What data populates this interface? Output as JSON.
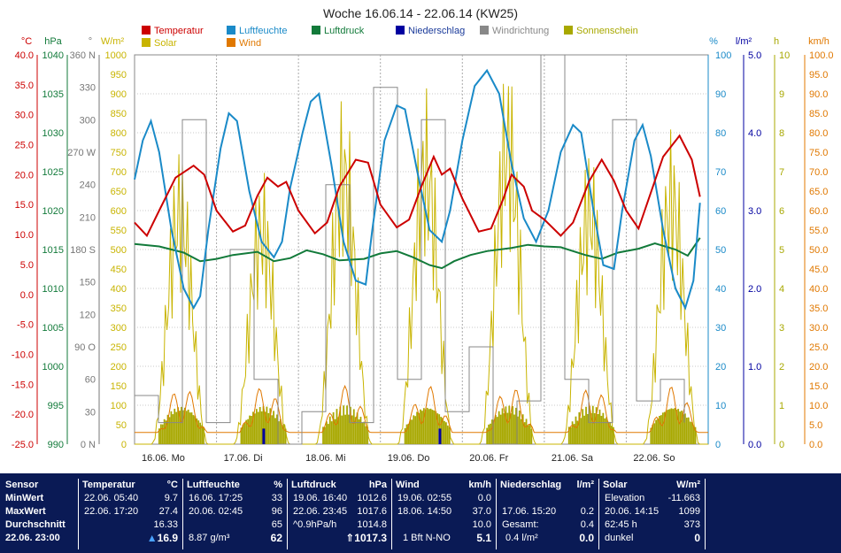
{
  "chart_data": {
    "type": "line",
    "title": "Woche 16.06.14 - 22.06.14 (KW25)",
    "legend": [
      {
        "name": "Temperatur",
        "color": "#cc0000"
      },
      {
        "name": "Solar",
        "color": "#c8b400"
      },
      {
        "name": "Luftfeuchte",
        "color": "#1a8ac8"
      },
      {
        "name": "Wind",
        "color": "#e07800"
      },
      {
        "name": "Luftdruck",
        "color": "#127a3a"
      },
      {
        "name": "Niederschlag",
        "color": "#0000a0"
      },
      {
        "name": "Windrichtung",
        "color": "#888888"
      },
      {
        "name": "Sonnenschein",
        "color": "#a8a800"
      }
    ],
    "axes": {
      "temp": {
        "unit": "°C",
        "color": "#cc0000",
        "ticks": [
          "40.0",
          "35.0",
          "30.0",
          "25.0",
          "20.0",
          "15.0",
          "10.0",
          "5.0",
          "0.0",
          "-5.0",
          "-10.0",
          "-15.0",
          "-20.0",
          "-25.0"
        ]
      },
      "pressure": {
        "unit": "hPa",
        "color": "#127a3a",
        "ticks": [
          "1040",
          "1035",
          "1030",
          "1025",
          "1020",
          "1015",
          "1010",
          "1005",
          "1000",
          "995",
          "990"
        ]
      },
      "direction": {
        "unit": "°",
        "color": "#777777",
        "ticks": [
          "360 N",
          "330",
          "300",
          "270 W",
          "240",
          "210",
          "180 S",
          "150",
          "120",
          "90 O",
          "60",
          "30",
          "0 N"
        ]
      },
      "solar": {
        "unit": "W/m²",
        "color": "#c8b400",
        "ticks": [
          "1000",
          "950",
          "900",
          "850",
          "800",
          "750",
          "700",
          "650",
          "600",
          "550",
          "500",
          "450",
          "400",
          "350",
          "300",
          "250",
          "200",
          "150",
          "100",
          "50",
          "0"
        ]
      },
      "humidity": {
        "unit": "%",
        "color": "#1a8ac8",
        "ticks": [
          "100",
          "90",
          "80",
          "70",
          "60",
          "50",
          "40",
          "30",
          "20",
          "10",
          "0"
        ]
      },
      "rain": {
        "unit": "l/m²",
        "color": "#0000a0",
        "ticks": [
          "5.0",
          "4.0",
          "3.0",
          "2.0",
          "1.0",
          "0.0"
        ]
      },
      "sunshine": {
        "unit": "h",
        "color": "#a8a800",
        "ticks": [
          "10",
          "9",
          "8",
          "7",
          "6",
          "5",
          "4",
          "3",
          "2",
          "1",
          "0"
        ]
      },
      "wind": {
        "unit": "km/h",
        "color": "#e07800",
        "ticks": [
          "100.0",
          "95.0",
          "90.0",
          "85.0",
          "80.0",
          "75.0",
          "70.0",
          "65.0",
          "60.0",
          "55.0",
          "50.0",
          "45.0",
          "40.0",
          "35.0",
          "30.0",
          "25.0",
          "20.0",
          "15.0",
          "10.0",
          "5.0",
          "0.0"
        ]
      }
    },
    "x_labels": [
      "16.06. Mo",
      "17.06. Di",
      "18.06. Mi",
      "19.06. Do",
      "20.06. Fr",
      "21.06. Sa",
      "22.06. So"
    ],
    "temperature_series": [
      [
        0,
        12.0
      ],
      [
        0.15,
        9.8
      ],
      [
        0.3,
        14
      ],
      [
        0.5,
        19.5
      ],
      [
        0.72,
        21.5
      ],
      [
        0.85,
        20
      ],
      [
        1.0,
        14
      ],
      [
        1.2,
        10.5
      ],
      [
        1.35,
        11.5
      ],
      [
        1.5,
        16.5
      ],
      [
        1.62,
        19.5
      ],
      [
        1.75,
        18
      ],
      [
        1.85,
        18.8
      ],
      [
        2.0,
        14
      ],
      [
        2.2,
        10.2
      ],
      [
        2.35,
        12
      ],
      [
        2.5,
        18
      ],
      [
        2.7,
        22.5
      ],
      [
        2.85,
        22
      ],
      [
        3.0,
        15
      ],
      [
        3.2,
        11.2
      ],
      [
        3.35,
        12.5
      ],
      [
        3.5,
        18
      ],
      [
        3.65,
        23
      ],
      [
        3.75,
        20
      ],
      [
        3.85,
        21
      ],
      [
        4.0,
        16
      ],
      [
        4.2,
        10.5
      ],
      [
        4.35,
        11
      ],
      [
        4.5,
        16
      ],
      [
        4.6,
        20
      ],
      [
        4.75,
        18
      ],
      [
        4.85,
        14
      ],
      [
        5.0,
        12.5
      ],
      [
        5.2,
        9.8
      ],
      [
        5.35,
        12
      ],
      [
        5.55,
        19
      ],
      [
        5.7,
        22.5
      ],
      [
        5.85,
        19
      ],
      [
        6.0,
        14
      ],
      [
        6.15,
        11
      ],
      [
        6.3,
        17
      ],
      [
        6.45,
        23
      ],
      [
        6.65,
        26.5
      ],
      [
        6.8,
        22.5
      ],
      [
        6.9,
        16.3
      ]
    ],
    "humidity_series": [
      [
        0,
        68
      ],
      [
        0.1,
        78
      ],
      [
        0.2,
        83
      ],
      [
        0.3,
        75
      ],
      [
        0.45,
        55
      ],
      [
        0.6,
        40
      ],
      [
        0.72,
        35
      ],
      [
        0.8,
        38
      ],
      [
        0.9,
        55
      ],
      [
        1.05,
        76
      ],
      [
        1.15,
        85
      ],
      [
        1.25,
        83
      ],
      [
        1.4,
        65
      ],
      [
        1.55,
        52
      ],
      [
        1.7,
        48
      ],
      [
        1.8,
        52
      ],
      [
        1.9,
        66
      ],
      [
        2.05,
        80
      ],
      [
        2.15,
        88
      ],
      [
        2.25,
        90
      ],
      [
        2.4,
        72
      ],
      [
        2.55,
        52
      ],
      [
        2.7,
        42
      ],
      [
        2.82,
        41
      ],
      [
        2.9,
        55
      ],
      [
        3.05,
        78
      ],
      [
        3.2,
        87
      ],
      [
        3.3,
        86
      ],
      [
        3.45,
        70
      ],
      [
        3.6,
        55
      ],
      [
        3.75,
        52
      ],
      [
        3.85,
        60
      ],
      [
        4.0,
        78
      ],
      [
        4.15,
        92
      ],
      [
        4.3,
        96
      ],
      [
        4.45,
        90
      ],
      [
        4.6,
        72
      ],
      [
        4.75,
        58
      ],
      [
        4.9,
        52
      ],
      [
        5.05,
        60
      ],
      [
        5.2,
        75
      ],
      [
        5.35,
        82
      ],
      [
        5.45,
        80
      ],
      [
        5.6,
        60
      ],
      [
        5.72,
        46
      ],
      [
        5.85,
        45
      ],
      [
        5.95,
        60
      ],
      [
        6.1,
        78
      ],
      [
        6.2,
        82
      ],
      [
        6.3,
        74
      ],
      [
        6.45,
        55
      ],
      [
        6.6,
        40
      ],
      [
        6.72,
        35
      ],
      [
        6.82,
        42
      ],
      [
        6.9,
        62
      ]
    ],
    "pressure_series": [
      [
        0,
        1015.7
      ],
      [
        0.3,
        1015.4
      ],
      [
        0.6,
        1014.6
      ],
      [
        0.8,
        1013.5
      ],
      [
        1.0,
        1013.8
      ],
      [
        1.2,
        1014.3
      ],
      [
        1.5,
        1014.7
      ],
      [
        1.7,
        1013.5
      ],
      [
        1.9,
        1013.9
      ],
      [
        2.1,
        1014.9
      ],
      [
        2.3,
        1014.4
      ],
      [
        2.5,
        1013.6
      ],
      [
        2.8,
        1013.8
      ],
      [
        3.0,
        1014.5
      ],
      [
        3.2,
        1014.8
      ],
      [
        3.4,
        1014.0
      ],
      [
        3.6,
        1013.0
      ],
      [
        3.75,
        1012.6
      ],
      [
        3.9,
        1013.5
      ],
      [
        4.1,
        1014.3
      ],
      [
        4.3,
        1014.8
      ],
      [
        4.6,
        1015.2
      ],
      [
        4.8,
        1015.6
      ],
      [
        5.0,
        1015.4
      ],
      [
        5.2,
        1015.3
      ],
      [
        5.5,
        1014.3
      ],
      [
        5.7,
        1013.8
      ],
      [
        5.9,
        1014.6
      ],
      [
        6.15,
        1015.1
      ],
      [
        6.35,
        1015.8
      ],
      [
        6.6,
        1015.0
      ],
      [
        6.75,
        1014.2
      ],
      [
        6.9,
        1016.5
      ]
    ],
    "rain_events": [
      [
        1.56,
        0.2
      ],
      [
        3.71,
        0.2
      ]
    ],
    "summary": {
      "sensor": {
        "header": "Sensor",
        "min": "MinWert",
        "max": "MaxWert",
        "avg": "Durchschnitt",
        "time": "22.06. 23:00"
      },
      "temperature": {
        "header": "Temperatur",
        "unit": "°C",
        "min_time": "22.06. 05:40",
        "min": "9.7",
        "max_time": "22.06. 17:20",
        "max": "27.4",
        "avg": "16.33",
        "current": "16.9"
      },
      "humidity": {
        "header": "Luftfeuchte",
        "unit": "%",
        "min_time": "16.06. 17:25",
        "min": "33",
        "max_time": "20.06. 02:45",
        "max": "96",
        "avg": "65",
        "abs": "8.87 g/m³",
        "current": "62"
      },
      "pressure": {
        "header": "Luftdruck",
        "unit": "hPa",
        "min_time": "19.06. 16:40",
        "min": "1012.6",
        "max_time": "22.06. 23:45",
        "max": "1017.6",
        "trend": "^0.9hPa/h",
        "avg": "1014.8",
        "current": "1017.3"
      },
      "wind": {
        "header": "Wind",
        "unit": "km/h",
        "min_time": "19.06. 02:55",
        "min": "0.0",
        "max_time": "18.06. 14:50",
        "max": "37.0",
        "avg": "10.0",
        "desc": "1 Bft N-NO",
        "current": "5.1"
      },
      "rain": {
        "header": "Niederschlag",
        "unit": "l/m²",
        "max_time": "17.06. 15:20",
        "max": "0.2",
        "total_label": "Gesamt:",
        "total": "0.4",
        "rate": "0.4 l/m²",
        "current": "0.0"
      },
      "solar": {
        "header": "Solar",
        "unit": "W/m²",
        "elev_label": "Elevation",
        "elev": "-11.663",
        "max_time": "20.06. 14:15",
        "max": "1099",
        "hours": "62:45 h",
        "hours_val": "373",
        "state": "dunkel",
        "current": "0"
      }
    }
  }
}
